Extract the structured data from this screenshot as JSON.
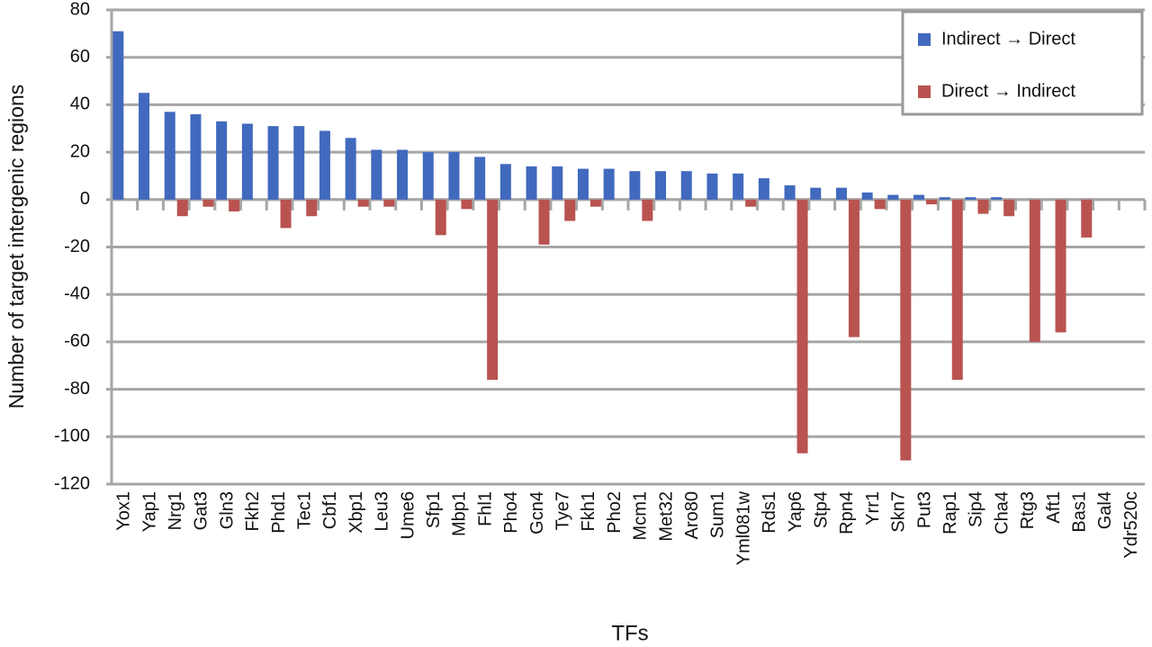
{
  "chart_data": {
    "type": "bar",
    "x_label": "TFs",
    "y_label": "Number of target intergenic regions",
    "categories": [
      "Yox1",
      "Yap1",
      "Nrg1",
      "Gat3",
      "Gln3",
      "Fkh2",
      "Phd1",
      "Tec1",
      "Cbf1",
      "Xbp1",
      "Leu3",
      "Ume6",
      "Sfp1",
      "Mbp1",
      "Fhl1",
      "Pho4",
      "Gcn4",
      "Tye7",
      "Fkh1",
      "Pho2",
      "Mcm1",
      "Met32",
      "Aro80",
      "Sum1",
      "Yml081w",
      "Rds1",
      "Yap6",
      "Stp4",
      "Rpn4",
      "Yrr1",
      "Skn7",
      "Put3",
      "Rap1",
      "Sip4",
      "Cha4",
      "Rtg3",
      "Aft1",
      "Bas1",
      "Gal4",
      "Ydr520c"
    ],
    "series": [
      {
        "name": "Indirect → Direct",
        "color": "#4169be",
        "values": [
          71,
          45,
          37,
          36,
          33,
          32,
          31,
          31,
          29,
          26,
          21,
          21,
          20,
          20,
          18,
          15,
          14,
          14,
          13,
          13,
          12,
          12,
          12,
          11,
          11,
          9,
          6,
          5,
          5,
          3,
          2,
          2,
          1,
          1,
          1,
          0,
          0,
          0,
          0,
          0
        ]
      },
      {
        "name": "Direct → Indirect",
        "color": "#b95350",
        "values": [
          0,
          0,
          -7,
          -3,
          -5,
          0,
          -12,
          -7,
          0,
          -3,
          -3,
          0,
          -15,
          -4,
          -76,
          0,
          -19,
          -9,
          -3,
          0,
          -9,
          0,
          0,
          0,
          -3,
          0,
          -107,
          0,
          -58,
          -4,
          -110,
          -2,
          -76,
          -6,
          -7,
          -60,
          -56,
          -16,
          0,
          0
        ]
      }
    ],
    "ylim": [
      -120,
      80
    ],
    "yticks": [
      -120,
      -100,
      -80,
      -60,
      -40,
      -20,
      0,
      20,
      40,
      60,
      80
    ],
    "grid": true,
    "legend": "top-right"
  }
}
